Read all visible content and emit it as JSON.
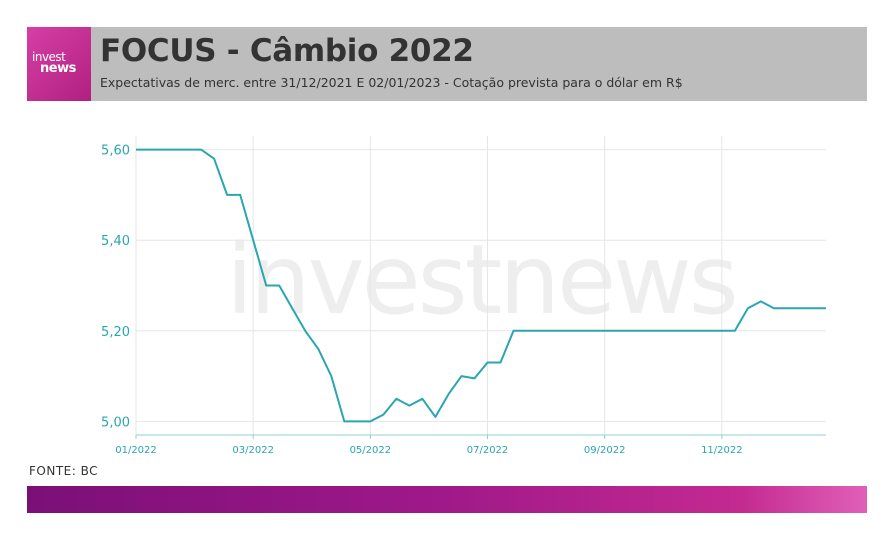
{
  "header": {
    "logo_top": "invest",
    "logo_bottom": "news",
    "title": "FOCUS - Câmbio 2022",
    "subtitle": "Expectativas de merc. entre 31/12/2021 E 02/01/2023 - Cotação prevista para o dólar em R$"
  },
  "watermark": "investnews",
  "source": "FONTE: BC",
  "colors": {
    "line": "#2aa6b0",
    "axis_text": "#2aa6b0",
    "header_bg": "#bdbdbd",
    "logo_bg": "#c42a90"
  },
  "chart_data": {
    "type": "line",
    "title": "FOCUS - Câmbio 2022",
    "xlabel": "",
    "ylabel": "",
    "ylim": [
      4.97,
      5.63
    ],
    "xlim": [
      0,
      53
    ],
    "y_ticks": [
      5.0,
      5.2,
      5.4,
      5.6
    ],
    "y_tick_labels": [
      "5,00",
      "5,20",
      "5,40",
      "5,60"
    ],
    "x_ticks": [
      0,
      9,
      18,
      27,
      36,
      45
    ],
    "x_tick_labels": [
      "01/2022",
      "03/2022",
      "05/2022",
      "07/2022",
      "09/2022",
      "11/2022"
    ],
    "grid": true,
    "x": [
      0,
      1,
      2,
      3,
      4,
      5,
      6,
      7,
      8,
      9,
      10,
      11,
      12,
      13,
      14,
      15,
      16,
      17,
      18,
      19,
      20,
      21,
      22,
      23,
      24,
      25,
      26,
      27,
      28,
      29,
      30,
      31,
      32,
      33,
      34,
      35,
      36,
      37,
      38,
      39,
      40,
      41,
      42,
      43,
      44,
      45,
      46,
      47,
      48,
      49,
      50,
      51,
      52,
      53
    ],
    "values": [
      5.6,
      5.6,
      5.6,
      5.6,
      5.6,
      5.6,
      5.58,
      5.5,
      5.5,
      5.4,
      5.3,
      5.3,
      5.25,
      5.2,
      5.16,
      5.1,
      5.0,
      5.0,
      5.0,
      5.015,
      5.05,
      5.035,
      5.05,
      5.01,
      5.06,
      5.1,
      5.095,
      5.13,
      5.13,
      5.2,
      5.2,
      5.2,
      5.2,
      5.2,
      5.2,
      5.2,
      5.2,
      5.2,
      5.2,
      5.2,
      5.2,
      5.2,
      5.2,
      5.2,
      5.2,
      5.2,
      5.2,
      5.25,
      5.265,
      5.25,
      5.25,
      5.25,
      5.25,
      5.25
    ]
  }
}
